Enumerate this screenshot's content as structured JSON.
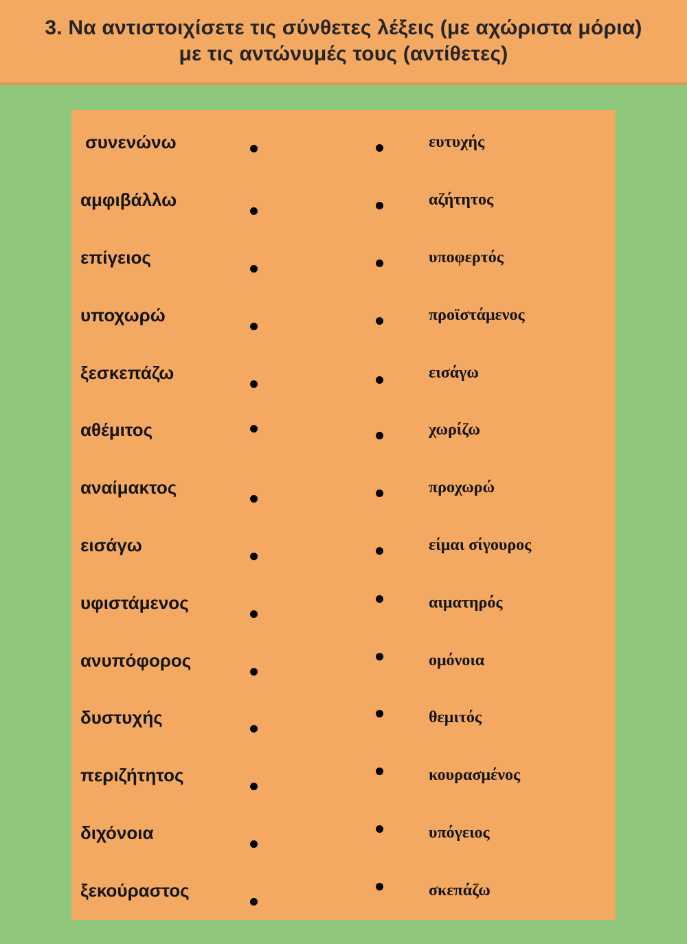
{
  "title": {
    "line1": "3. Να αντιστοιχίσετε τις σύνθετες λέξεις (με αχώριστα μόρια)",
    "line2": "με τις αντώνυμές τους (αντίθετες)"
  },
  "colors": {
    "page_bg": "#8FC87D",
    "header_bg": "#F4A963",
    "panel_bg": "#F4A963",
    "divider": "#DC9C58",
    "title_text": "#252525",
    "word_text": "#141414",
    "dot": "#000000"
  },
  "exercise": {
    "pairs": [
      {
        "left": "συνενώνω",
        "right": "ευτυχής"
      },
      {
        "left": "αμφιβάλλω",
        "right": "αζήτητος"
      },
      {
        "left": "επίγειος",
        "right": "υποφερτός"
      },
      {
        "left": "υποχωρώ",
        "right": "προϊστάμενος"
      },
      {
        "left": "ξεσκεπάζω",
        "right": "εισάγω"
      },
      {
        "left": "αθέμιτος",
        "right": "χωρίζω"
      },
      {
        "left": "αναίμακτος",
        "right": "προχωρώ"
      },
      {
        "left": "εισάγω",
        "right": "είμαι σίγουρος"
      },
      {
        "left": "υφιστάμενος",
        "right": "αιματηρός"
      },
      {
        "left": "ανυπόφορος",
        "right": "ομόνοια"
      },
      {
        "left": "δυστυχής",
        "right": "θεμιτός"
      },
      {
        "left": "περιζήτητος",
        "right": "κουρασμένος"
      },
      {
        "left": "διχόνοια",
        "right": "υπόγειος"
      },
      {
        "left": "ξεκούραστος",
        "right": "σκεπάζω"
      }
    ]
  }
}
